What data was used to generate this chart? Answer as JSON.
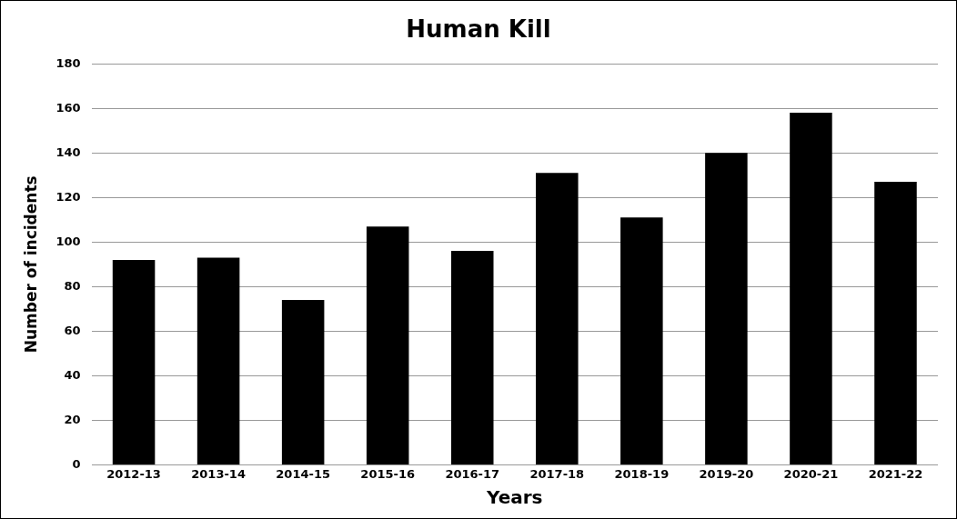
{
  "chart_data": {
    "type": "bar",
    "title": "Human Kill",
    "xlabel": "Years",
    "ylabel": "Number of incidents",
    "categories": [
      "2012-13",
      "2013-14",
      "2014-15",
      "2015-16",
      "2016-17",
      "2017-18",
      "2018-19",
      "2019-20",
      "2020-21",
      "2021-22"
    ],
    "values": [
      92,
      93,
      74,
      107,
      96,
      131,
      111,
      140,
      158,
      127
    ],
    "color": "#000000",
    "ylim": [
      0,
      180
    ],
    "yticks": [
      0,
      20,
      40,
      60,
      80,
      100,
      120,
      140,
      160,
      180
    ],
    "grid": "y",
    "legend": false
  }
}
